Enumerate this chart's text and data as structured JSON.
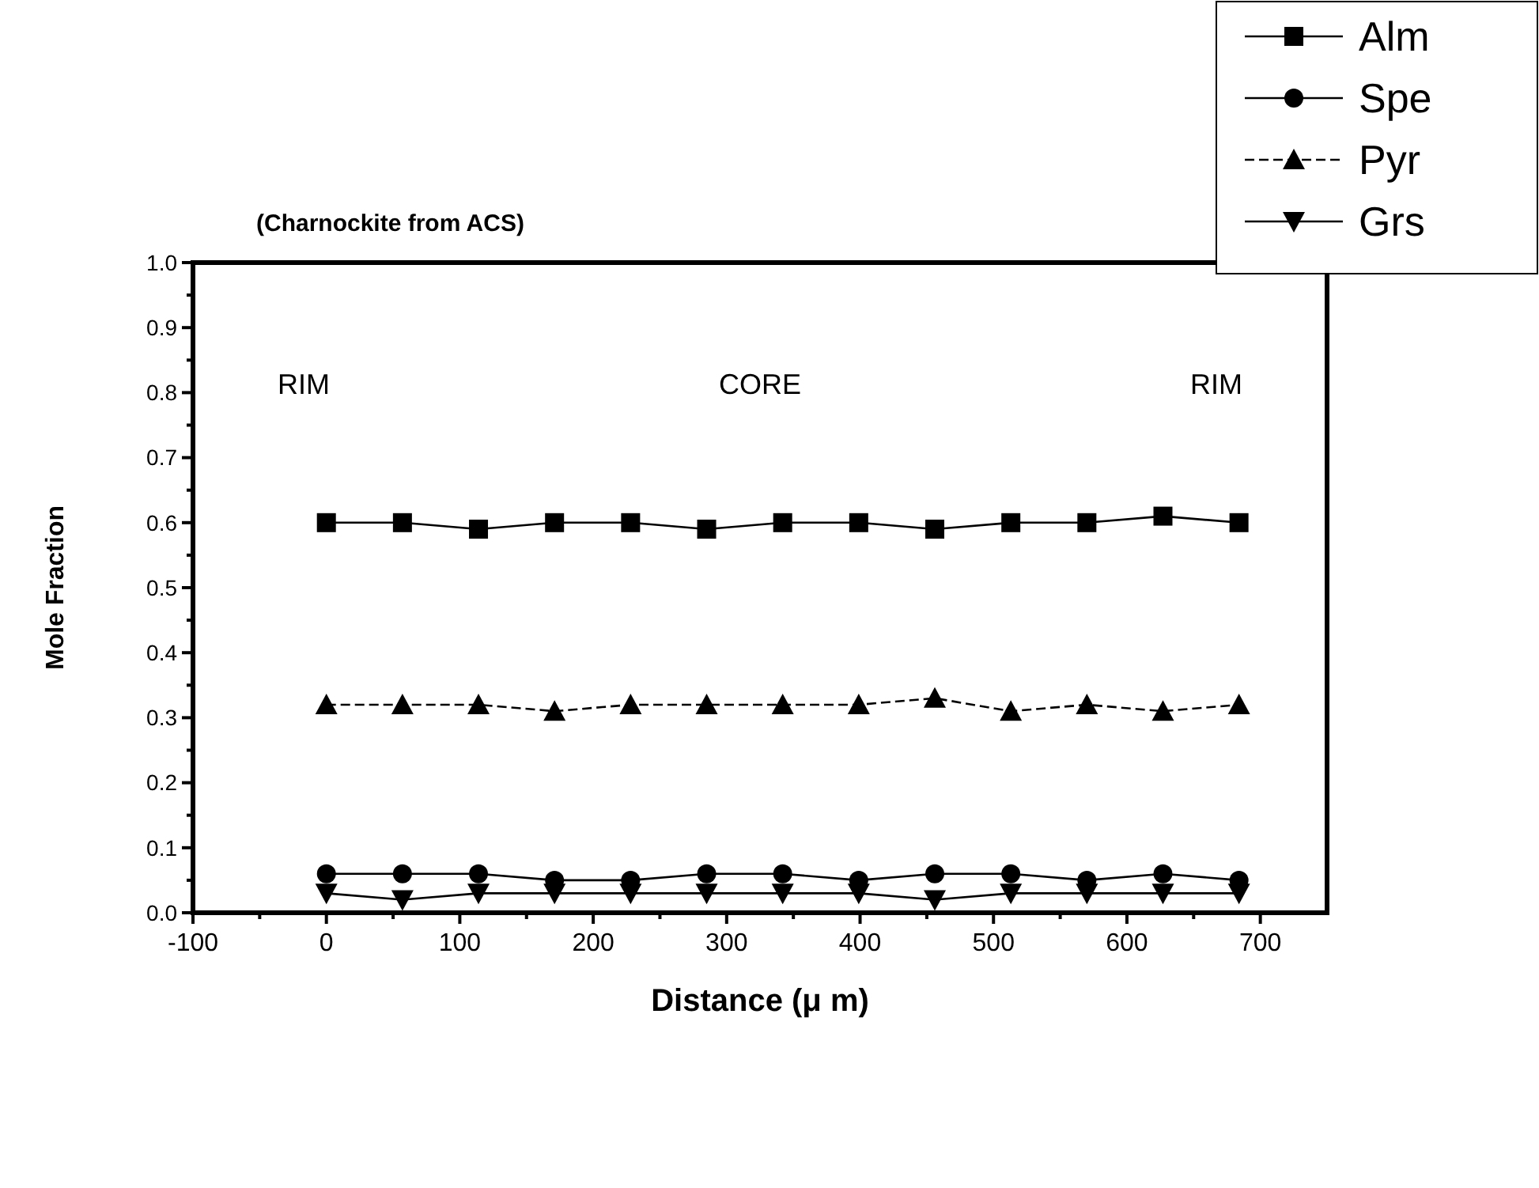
{
  "chart_data": {
    "type": "line",
    "title": "(Charnockite from ACS)",
    "xlabel": "Distance (μ m)",
    "ylabel": "Mole Fraction",
    "x": [
      0,
      57,
      114,
      171,
      228,
      285,
      342,
      399,
      456,
      513,
      570,
      627,
      684
    ],
    "series": [
      {
        "name": "Alm",
        "color": "#000000",
        "marker": "square",
        "line_style": "solid",
        "values": [
          0.6,
          0.6,
          0.59,
          0.6,
          0.6,
          0.59,
          0.6,
          0.6,
          0.59,
          0.6,
          0.6,
          0.61,
          0.6
        ]
      },
      {
        "name": "Spe",
        "color": "#000000",
        "marker": "circle",
        "line_style": "solid",
        "values": [
          0.06,
          0.06,
          0.06,
          0.05,
          0.05,
          0.06,
          0.06,
          0.05,
          0.06,
          0.06,
          0.05,
          0.06,
          0.05
        ]
      },
      {
        "name": "Pyr",
        "color": "#000000",
        "marker": "triangle",
        "line_style": "dashed",
        "values": [
          0.32,
          0.32,
          0.32,
          0.31,
          0.32,
          0.32,
          0.32,
          0.32,
          0.33,
          0.31,
          0.32,
          0.31,
          0.32
        ]
      },
      {
        "name": "Grs",
        "color": "#000000",
        "marker": "triangle-down",
        "line_style": "solid",
        "values": [
          0.03,
          0.02,
          0.03,
          0.03,
          0.03,
          0.03,
          0.03,
          0.03,
          0.02,
          0.03,
          0.03,
          0.03,
          0.03
        ]
      }
    ],
    "xlim": [
      -100,
      750
    ],
    "xticks": [
      -100,
      {
        "value": -50,
        "label": null
      },
      0,
      {
        "value": 50,
        "label": null
      },
      100,
      {
        "value": 150,
        "label": null
      },
      200,
      {
        "value": 250,
        "label": null
      },
      300,
      {
        "value": 350,
        "label": null
      },
      400,
      {
        "value": 450,
        "label": null
      },
      500,
      {
        "value": 550,
        "label": null
      },
      600,
      {
        "value": 650,
        "label": null
      },
      700
    ],
    "ylim": [
      0,
      1
    ],
    "yticks": [
      {
        "value": 0,
        "label": "0.0"
      },
      {
        "value": 0.05,
        "label": null
      },
      0.1,
      {
        "value": 0.15,
        "label": null
      },
      0.2,
      {
        "value": 0.25,
        "label": null
      },
      0.3,
      {
        "value": 0.35,
        "label": null
      },
      0.4,
      {
        "value": 0.45,
        "label": null
      },
      0.5,
      {
        "value": 0.55,
        "label": null
      },
      0.6,
      {
        "value": 0.65,
        "label": null
      },
      0.7,
      {
        "value": 0.75,
        "label": null
      },
      0.8,
      {
        "value": 0.85,
        "label": null
      },
      0.9,
      {
        "value": 0.95,
        "label": null
      },
      {
        "value": 1,
        "label": "1.0"
      }
    ],
    "annotations": [
      "RIM",
      "CORE",
      "RIM"
    ],
    "grid": false,
    "legend": "top right"
  }
}
